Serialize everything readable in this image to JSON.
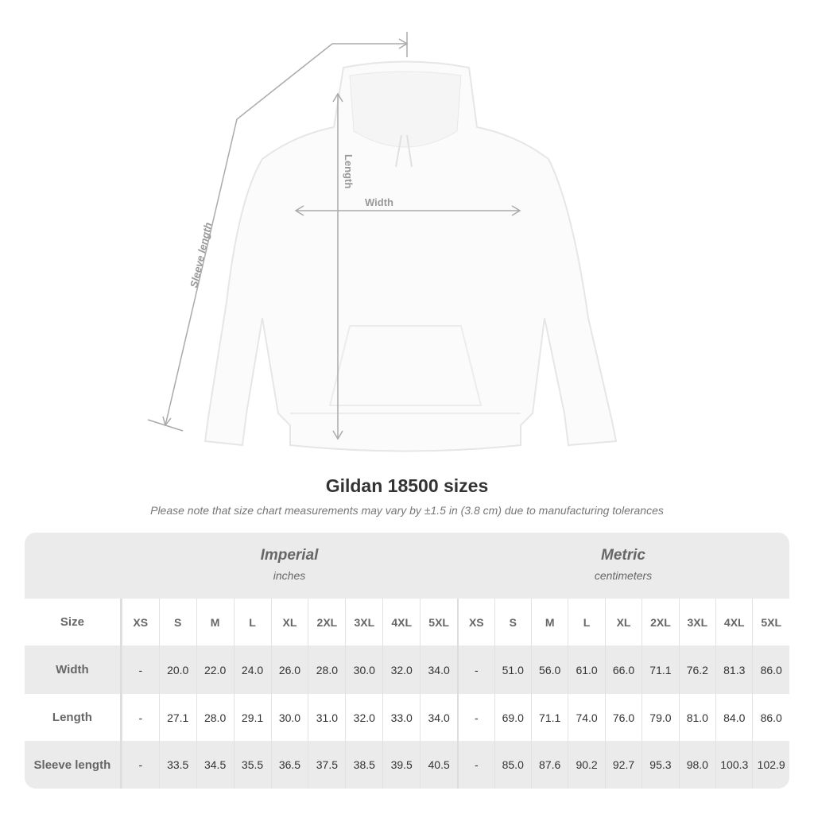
{
  "diagram": {
    "length_label": "Length",
    "width_label": "Width",
    "sleeve_label": "Sleeve length"
  },
  "title": "Gildan 18500 sizes",
  "note": "Please note that size chart measurements may vary by ±1.5 in (3.8 cm) due to manufacturing tolerances",
  "table": {
    "imperial": {
      "name": "Imperial",
      "unit": "inches"
    },
    "metric": {
      "name": "Metric",
      "unit": "centimeters"
    },
    "size_label": "Size",
    "sizes": [
      "XS",
      "S",
      "M",
      "L",
      "XL",
      "2XL",
      "3XL",
      "4XL",
      "5XL"
    ],
    "rows": [
      {
        "label": "Width",
        "imperial": [
          "-",
          "20.0",
          "22.0",
          "24.0",
          "26.0",
          "28.0",
          "30.0",
          "32.0",
          "34.0"
        ],
        "metric": [
          "-",
          "51.0",
          "56.0",
          "61.0",
          "66.0",
          "71.1",
          "76.2",
          "81.3",
          "86.0"
        ]
      },
      {
        "label": "Length",
        "imperial": [
          "-",
          "27.1",
          "28.0",
          "29.1",
          "30.0",
          "31.0",
          "32.0",
          "33.0",
          "34.0"
        ],
        "metric": [
          "-",
          "69.0",
          "71.1",
          "74.0",
          "76.0",
          "79.0",
          "81.0",
          "84.0",
          "86.0"
        ]
      },
      {
        "label": "Sleeve length",
        "imperial": [
          "-",
          "33.5",
          "34.5",
          "35.5",
          "36.5",
          "37.5",
          "38.5",
          "39.5",
          "40.5"
        ],
        "metric": [
          "-",
          "85.0",
          "87.6",
          "90.2",
          "92.7",
          "95.3",
          "98.0",
          "100.3",
          "102.9"
        ]
      }
    ]
  },
  "colors": {
    "table_bg": "#ebebeb",
    "text": "#333333",
    "label": "#666666",
    "dim_line": "#aaaaaa"
  }
}
